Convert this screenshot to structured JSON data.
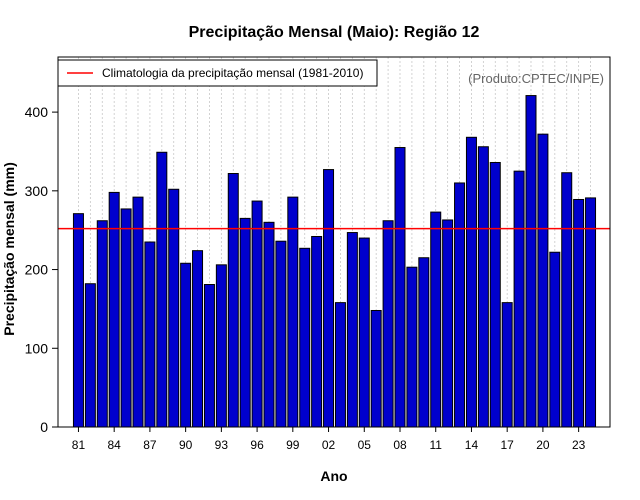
{
  "colors": {
    "bar_fill": "#0000CD",
    "bar_stroke": "#000000",
    "climatology_line": "#FF0000",
    "grid": "#C8C8C8",
    "credit_text": "#666666"
  },
  "chart_data": {
    "type": "bar",
    "title": "Precipitação Mensal (Maio): Região 12",
    "xlabel": "Ano",
    "ylabel": "Precipitação mensal (mm)",
    "ylim": [
      0,
      470
    ],
    "yticks": [
      0,
      100,
      200,
      300,
      400
    ],
    "x": [
      1981,
      1982,
      1983,
      1984,
      1985,
      1986,
      1987,
      1988,
      1989,
      1990,
      1991,
      1992,
      1993,
      1994,
      1995,
      1996,
      1997,
      1998,
      1999,
      2000,
      2001,
      2002,
      2003,
      2004,
      2005,
      2006,
      2007,
      2008,
      2009,
      2010,
      2011,
      2012,
      2013,
      2014,
      2015,
      2016,
      2017,
      2018,
      2019,
      2020,
      2021,
      2022,
      2023,
      2024
    ],
    "values": [
      271,
      182,
      262,
      298,
      277,
      292,
      235,
      349,
      302,
      208,
      224,
      181,
      206,
      322,
      265,
      287,
      260,
      236,
      292,
      227,
      242,
      327,
      158,
      247,
      240,
      148,
      262,
      355,
      203,
      215,
      273,
      263,
      310,
      368,
      356,
      336,
      158,
      325,
      421,
      372,
      222,
      323,
      289,
      291
    ],
    "xtick_labels": [
      "81",
      "84",
      "87",
      "90",
      "93",
      "96",
      "99",
      "02",
      "05",
      "08",
      "11",
      "14",
      "17",
      "20",
      "23"
    ],
    "xtick_years": [
      1981,
      1984,
      1987,
      1990,
      1993,
      1996,
      1999,
      2002,
      2005,
      2008,
      2011,
      2014,
      2017,
      2020,
      2023
    ],
    "climatology": 252,
    "legend": {
      "label": "Climatologia da precipitação mensal (1981-2010)",
      "position": "top-left"
    },
    "grid": "vertical-dotted",
    "credit": "(Produto:CPTEC/INPE)"
  }
}
